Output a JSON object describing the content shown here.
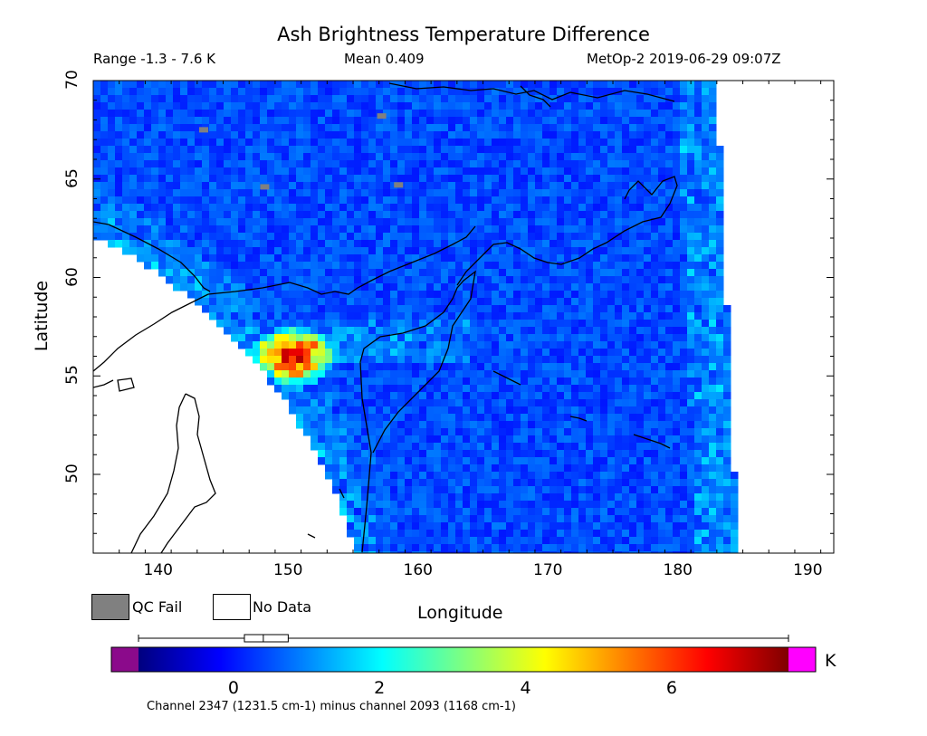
{
  "header": {
    "title": "Ash Brightness Temperature Difference",
    "range": "Range -1.3 - 7.6 K",
    "mean": "Mean 0.409",
    "source": "MetOp-2 2019-06-29 09:07Z"
  },
  "chart_data": {
    "type": "heatmap",
    "title": "Ash Brightness Temperature Difference",
    "xlabel": "Longitude",
    "ylabel": "Latitude",
    "xlim": [
      135,
      192
    ],
    "ylim": [
      46,
      70
    ],
    "xticks": [
      "140",
      "150",
      "160",
      "170",
      "180",
      "190"
    ],
    "yticks": [
      "50",
      "55",
      "60",
      "65",
      "70"
    ],
    "value_range": [
      -1.3,
      7.6
    ],
    "mean": 0.409,
    "unit": "K",
    "ash_hotspot": {
      "lon_range": [
        147,
        154
      ],
      "lat_range": [
        54.5,
        57.5
      ],
      "peak_value": 7.6
    },
    "background_value": 0.4
  },
  "legend": {
    "qc_fail_label": "QC Fail",
    "no_data_label": "No Data",
    "qc_fail_color": "#808080",
    "no_data_color": "#ffffff"
  },
  "colorbar": {
    "ticks": [
      "0",
      "2",
      "4",
      "6"
    ],
    "unit": "K",
    "range": [
      -1.3,
      7.6
    ],
    "under_color": "#8b0a8b",
    "over_color": "#ff00ff",
    "colors": [
      "#00007f",
      "#0000ff",
      "#007fff",
      "#00ffff",
      "#7fff7f",
      "#ffff00",
      "#ff7f00",
      "#ff0000",
      "#7f0000"
    ]
  },
  "footnote": "Channel 2347 (1231.5 cm-1) minus channel 2093 (1168 cm-1)"
}
